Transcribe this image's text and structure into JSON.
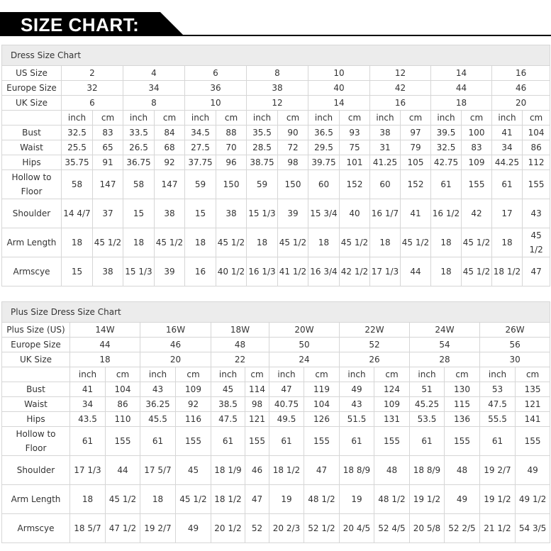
{
  "header": {
    "title": "SIZE CHART:"
  },
  "dress": {
    "title": "Dress Size Chart",
    "size_rows": [
      {
        "label": "US Size",
        "values": [
          "2",
          "4",
          "6",
          "8",
          "10",
          "12",
          "14",
          "16"
        ]
      },
      {
        "label": "Europe Size",
        "values": [
          "32",
          "34",
          "36",
          "38",
          "40",
          "42",
          "44",
          "46"
        ]
      },
      {
        "label": "UK Size",
        "values": [
          "6",
          "8",
          "10",
          "12",
          "14",
          "16",
          "18",
          "20"
        ]
      }
    ],
    "units": [
      "inch",
      "cm"
    ],
    "measure_rows": [
      {
        "label": "Bust",
        "values": [
          "32.5",
          "83",
          "33.5",
          "84",
          "34.5",
          "88",
          "35.5",
          "90",
          "36.5",
          "93",
          "38",
          "97",
          "39.5",
          "100",
          "41",
          "104"
        ]
      },
      {
        "label": "Waist",
        "values": [
          "25.5",
          "65",
          "26.5",
          "68",
          "27.5",
          "70",
          "28.5",
          "72",
          "29.5",
          "75",
          "31",
          "79",
          "32.5",
          "83",
          "34",
          "86"
        ]
      },
      {
        "label": "Hips",
        "values": [
          "35.75",
          "91",
          "36.75",
          "92",
          "37.75",
          "96",
          "38.75",
          "98",
          "39.75",
          "101",
          "41.25",
          "105",
          "42.75",
          "109",
          "44.25",
          "112"
        ]
      },
      {
        "label": "Hollow to Floor",
        "values": [
          "58",
          "147",
          "58",
          "147",
          "59",
          "150",
          "59",
          "150",
          "60",
          "152",
          "60",
          "152",
          "61",
          "155",
          "61",
          "155"
        ]
      },
      {
        "label": "Shoulder",
        "values": [
          "14 4/7",
          "37",
          "15",
          "38",
          "15",
          "38",
          "15 1/3",
          "39",
          "15 3/4",
          "40",
          "16 1/7",
          "41",
          "16 1/2",
          "42",
          "17",
          "43"
        ]
      },
      {
        "label": "Arm Length",
        "values": [
          "18",
          "45 1/2",
          "18",
          "45 1/2",
          "18",
          "45 1/2",
          "18",
          "45 1/2",
          "18",
          "45 1/2",
          "18",
          "45 1/2",
          "18",
          "45 1/2",
          "18",
          "45 1/2"
        ]
      },
      {
        "label": "Armscye",
        "values": [
          "15",
          "38",
          "15 1/3",
          "39",
          "16",
          "40 1/2",
          "16 1/3",
          "41 1/2",
          "16 3/4",
          "42 1/2",
          "17 1/3",
          "44",
          "18",
          "45 1/2",
          "18 1/2",
          "47"
        ]
      }
    ]
  },
  "plus": {
    "title": "Plus Size Dress Size Chart",
    "size_rows": [
      {
        "label": "Plus Size (US)",
        "values": [
          "14W",
          "16W",
          "18W",
          "20W",
          "22W",
          "24W",
          "26W"
        ]
      },
      {
        "label": "Europe Size",
        "values": [
          "44",
          "46",
          "48",
          "50",
          "52",
          "54",
          "56"
        ]
      },
      {
        "label": "UK Size",
        "values": [
          "18",
          "20",
          "22",
          "24",
          "26",
          "28",
          "30"
        ]
      }
    ],
    "units": [
      "inch",
      "cm"
    ],
    "measure_rows": [
      {
        "label": "Bust",
        "values": [
          "41",
          "104",
          "43",
          "109",
          "45",
          "114",
          "47",
          "119",
          "49",
          "124",
          "51",
          "130",
          "53",
          "135"
        ]
      },
      {
        "label": "Waist",
        "values": [
          "34",
          "86",
          "36.25",
          "92",
          "38.5",
          "98",
          "40.75",
          "104",
          "43",
          "109",
          "45.25",
          "115",
          "47.5",
          "121"
        ]
      },
      {
        "label": "Hips",
        "values": [
          "43.5",
          "110",
          "45.5",
          "116",
          "47.5",
          "121",
          "49.5",
          "126",
          "51.5",
          "131",
          "53.5",
          "136",
          "55.5",
          "141"
        ]
      },
      {
        "label": "Hollow to Floor",
        "values": [
          "61",
          "155",
          "61",
          "155",
          "61",
          "155",
          "61",
          "155",
          "61",
          "155",
          "61",
          "155",
          "61",
          "155"
        ]
      },
      {
        "label": "Shoulder",
        "values": [
          "17 1/3",
          "44",
          "17 5/7",
          "45",
          "18 1/9",
          "46",
          "18 1/2",
          "47",
          "18 8/9",
          "48",
          "18 8/9",
          "48",
          "19 2/7",
          "49"
        ]
      },
      {
        "label": "Arm Length",
        "values": [
          "18",
          "45 1/2",
          "18",
          "45 1/2",
          "18 1/2",
          "47",
          "19",
          "48 1/2",
          "19",
          "48 1/2",
          "19 1/2",
          "49",
          "19 1/2",
          "49 1/2"
        ]
      },
      {
        "label": "Armscye",
        "values": [
          "18 5/7",
          "47 1/2",
          "19 2/7",
          "49",
          "20 1/2",
          "52",
          "20 2/3",
          "52 1/2",
          "20 4/5",
          "52 4/5",
          "20 5/8",
          "52 2/5",
          "21 1/2",
          "54 3/5"
        ]
      }
    ]
  }
}
